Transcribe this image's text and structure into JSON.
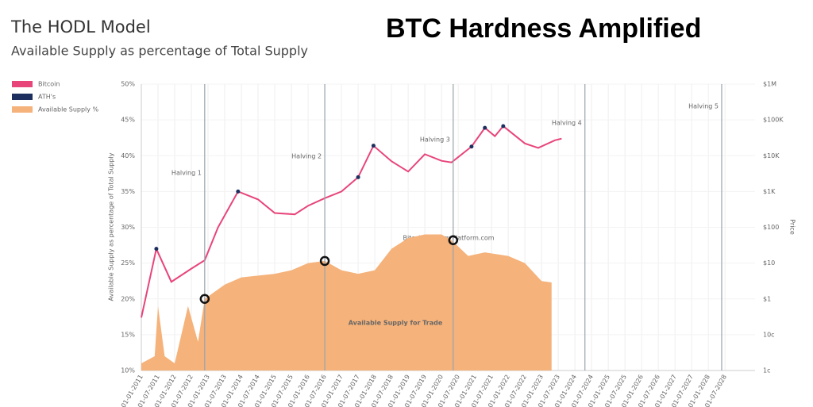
{
  "chart_data": {
    "type": "line",
    "title": "The HODL Model",
    "subtitle": "Available Supply as percentage of Total Supply",
    "overlay_title": "BTC Hardness Amplified",
    "ylabel": "Available Supply as percentage of Total Supply",
    "y2label": "Price",
    "watermark": "BitcoinStrategyPlatform.com",
    "annotation": "Available Supply for Trade",
    "xlim": [
      2011,
      2029.4
    ],
    "ylim": [
      10,
      50
    ],
    "y2lim": [
      0.01,
      1000000
    ],
    "y2scale": "log",
    "grid": true,
    "legend": "upper left",
    "yticks": [
      {
        "value": 10,
        "label": "10%"
      },
      {
        "value": 15,
        "label": "15%"
      },
      {
        "value": 20,
        "label": "20%"
      },
      {
        "value": 25,
        "label": "25%"
      },
      {
        "value": 30,
        "label": "30%"
      },
      {
        "value": 35,
        "label": "35%"
      },
      {
        "value": 40,
        "label": "40%"
      },
      {
        "value": 45,
        "label": "45%"
      },
      {
        "value": 50,
        "label": "50%"
      }
    ],
    "y2ticks": [
      {
        "value": 0.01,
        "label": "1c"
      },
      {
        "value": 0.1,
        "label": "10c"
      },
      {
        "value": 1,
        "label": "$1"
      },
      {
        "value": 10,
        "label": "$10"
      },
      {
        "value": 100,
        "label": "$100"
      },
      {
        "value": 1000,
        "label": "$1K"
      },
      {
        "value": 10000,
        "label": "$10K"
      },
      {
        "value": 100000,
        "label": "$100K"
      },
      {
        "value": 1000000,
        "label": "$1M"
      }
    ],
    "xticks": [
      {
        "value": 2011.0,
        "label": "01-01-2011"
      },
      {
        "value": 2011.5,
        "label": "01-07-2011"
      },
      {
        "value": 2012.0,
        "label": "01-01-2012"
      },
      {
        "value": 2012.5,
        "label": "01-07-2012"
      },
      {
        "value": 2013.0,
        "label": "01-01-2013"
      },
      {
        "value": 2013.5,
        "label": "01-07-2013"
      },
      {
        "value": 2014.0,
        "label": "01-01-2014"
      },
      {
        "value": 2014.5,
        "label": "01-07-2014"
      },
      {
        "value": 2015.0,
        "label": "01-01-2015"
      },
      {
        "value": 2015.5,
        "label": "01-07-2015"
      },
      {
        "value": 2016.0,
        "label": "01-01-2016"
      },
      {
        "value": 2016.5,
        "label": "01-07-2016"
      },
      {
        "value": 2017.0,
        "label": "01-01-2017"
      },
      {
        "value": 2017.5,
        "label": "01-07-2017"
      },
      {
        "value": 2018.0,
        "label": "01-01-2018"
      },
      {
        "value": 2018.5,
        "label": "01-07-2018"
      },
      {
        "value": 2019.0,
        "label": "01-01-2019"
      },
      {
        "value": 2019.5,
        "label": "01-07-2019"
      },
      {
        "value": 2020.0,
        "label": "01-01-2020"
      },
      {
        "value": 2020.5,
        "label": "01-07-2020"
      },
      {
        "value": 2021.0,
        "label": "01-01-2021"
      },
      {
        "value": 2021.5,
        "label": "01-07-2021"
      },
      {
        "value": 2022.0,
        "label": "01-01-2022"
      },
      {
        "value": 2022.5,
        "label": "01-07-2022"
      },
      {
        "value": 2023.0,
        "label": "01-01-2023"
      },
      {
        "value": 2023.5,
        "label": "01-07-2023"
      },
      {
        "value": 2024.0,
        "label": "01-01-2024"
      },
      {
        "value": 2024.5,
        "label": "01-07-2024"
      },
      {
        "value": 2025.0,
        "label": "01-01-2025"
      },
      {
        "value": 2025.5,
        "label": "01-07-2025"
      },
      {
        "value": 2026.0,
        "label": "01-01-2026"
      },
      {
        "value": 2026.5,
        "label": "01-07-2026"
      },
      {
        "value": 2027.0,
        "label": "01-01-2027"
      },
      {
        "value": 2027.5,
        "label": "01-07-2027"
      },
      {
        "value": 2028.0,
        "label": "01-01-2028"
      },
      {
        "value": 2028.5,
        "label": "01-07-2028"
      }
    ],
    "halvings": [
      {
        "label": "Halving 1",
        "x": 2012.9
      },
      {
        "label": "Halving 2",
        "x": 2016.5
      },
      {
        "label": "Halving 3",
        "x": 2020.35
      },
      {
        "label": "Halving 4",
        "x": 2024.3
      },
      {
        "label": "Halving 5",
        "x": 2028.4
      }
    ],
    "series": [
      {
        "name": "Bitcoin",
        "color": "#e8457a",
        "axis": "y2",
        "style": "line",
        "x": [
          2011.0,
          2011.45,
          2011.9,
          2012.5,
          2012.9,
          2013.3,
          2013.9,
          2014.5,
          2015.0,
          2015.6,
          2016.0,
          2016.5,
          2017.0,
          2017.5,
          2017.96,
          2018.5,
          2019.0,
          2019.5,
          2020.0,
          2020.3,
          2020.9,
          2021.3,
          2021.6,
          2021.85,
          2022.5,
          2022.9,
          2023.4,
          2023.6
        ],
        "values": [
          0.3,
          25,
          3,
          7,
          12,
          100,
          1000,
          600,
          250,
          230,
          400,
          650,
          1000,
          2500,
          19000,
          7000,
          3600,
          11000,
          7200,
          6500,
          18000,
          60000,
          35000,
          67000,
          22000,
          16500,
          27000,
          30000
        ]
      },
      {
        "name": "ATH's",
        "color": "#1c2f5e",
        "axis": "y2",
        "style": "dots",
        "x": [
          2011.45,
          2013.9,
          2017.5,
          2017.96,
          2020.9,
          2021.3,
          2021.85
        ],
        "values": [
          25,
          1000,
          2500,
          19000,
          18000,
          60000,
          67000
        ]
      },
      {
        "name": "Available Supply %",
        "color": "#f5b27a",
        "axis": "y",
        "style": "area",
        "x": [
          2011.0,
          2011.4,
          2011.5,
          2011.7,
          2012.0,
          2012.4,
          2012.7,
          2012.9,
          2013.5,
          2014.0,
          2015.0,
          2015.5,
          2016.0,
          2016.5,
          2017.0,
          2017.5,
          2018.0,
          2018.5,
          2019.0,
          2019.5,
          2020.0,
          2020.3,
          2020.8,
          2021.3,
          2022.0,
          2022.5,
          2023.0,
          2023.3
        ],
        "values": [
          11,
          12,
          19,
          12,
          11,
          19,
          14,
          20,
          22,
          23,
          23.5,
          24,
          25,
          25.3,
          24,
          23.5,
          24,
          27,
          28.5,
          29,
          29,
          28.2,
          26,
          26.5,
          26,
          25,
          22.5,
          22.3
        ]
      }
    ],
    "markers": {
      "x": [
        2012.9,
        2016.5,
        2020.35
      ],
      "values": [
        20,
        25.3,
        28.2
      ]
    }
  }
}
